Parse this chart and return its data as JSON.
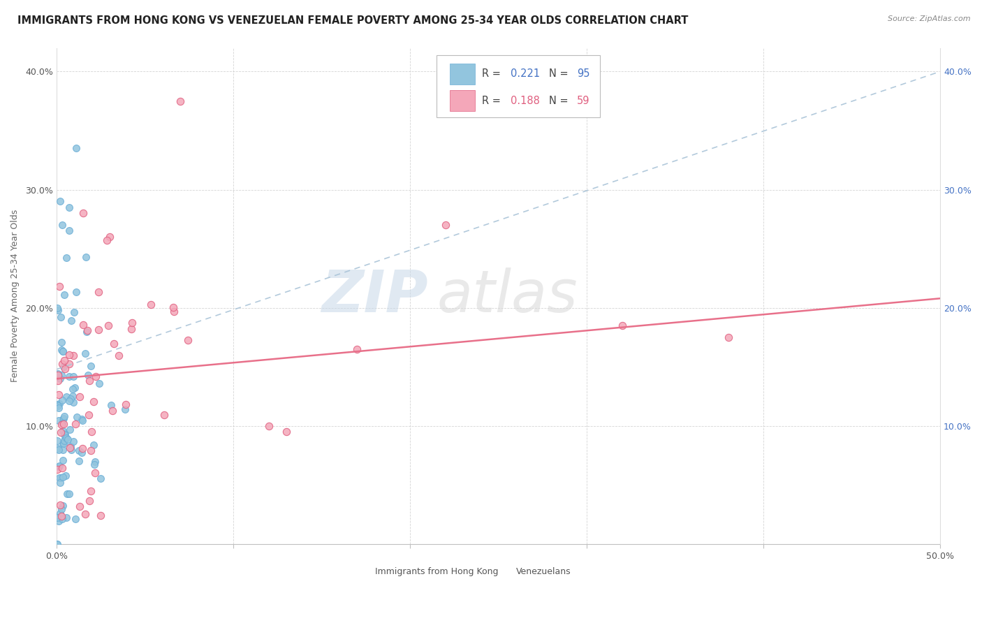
{
  "title": "IMMIGRANTS FROM HONG KONG VS VENEZUELAN FEMALE POVERTY AMONG 25-34 YEAR OLDS CORRELATION CHART",
  "source": "Source: ZipAtlas.com",
  "ylabel": "Female Poverty Among 25-34 Year Olds",
  "xlim": [
    0,
    0.5
  ],
  "ylim": [
    0,
    0.42
  ],
  "xticks": [
    0.0,
    0.1,
    0.2,
    0.3,
    0.4,
    0.5
  ],
  "yticks": [
    0.0,
    0.1,
    0.2,
    0.3,
    0.4
  ],
  "hk_color": "#92c5de",
  "hk_edge_color": "#6baed6",
  "ven_color": "#f4a7b9",
  "ven_edge_color": "#e06080",
  "hk_R": 0.221,
  "hk_N": 95,
  "ven_R": 0.188,
  "ven_N": 59,
  "legend_labels": [
    "Immigrants from Hong Kong",
    "Venezuelans"
  ],
  "watermark_zip": "ZIP",
  "watermark_atlas": "atlas",
  "background_color": "#ffffff",
  "grid_color": "#d0d0d0",
  "right_tick_color": "#4472c4",
  "title_fontsize": 10.5,
  "axis_fontsize": 9,
  "tick_fontsize": 9,
  "legend_R_N_color_hk": "#4472c4",
  "legend_R_N_color_ven": "#e06080"
}
